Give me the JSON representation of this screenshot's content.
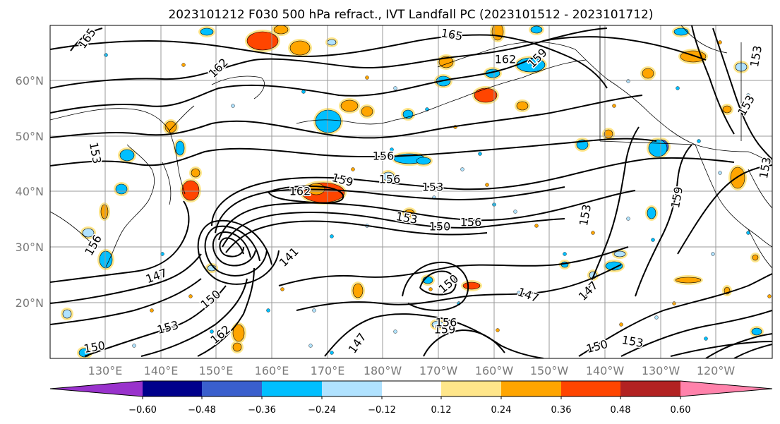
{
  "title": "2023101212 F030 500 hPa refract., IVT Landfall PC (2023101512 - 2023101712)",
  "lat_labels": [
    "60°N",
    "50°N",
    "40°N",
    "30°N",
    "20°N"
  ],
  "lon_labels": [
    "130°E",
    "140°E",
    "150°E",
    "160°E",
    "170°E",
    "180°W",
    "170°W",
    "160°W",
    "150°W",
    "140°W",
    "130°W",
    "120°W"
  ],
  "contour_labels": [
    "165",
    "165",
    "162",
    "162",
    "159",
    "153",
    "156",
    "159",
    "162",
    "153",
    "153",
    "150",
    "156",
    "156",
    "156",
    "147",
    "141",
    "150",
    "147",
    "147",
    "150",
    "162",
    "153",
    "150",
    "150",
    "153",
    "159",
    "156",
    "147",
    "153",
    "159",
    "153",
    "153",
    "153"
  ],
  "colorbar": {
    "tick_labels": [
      "−0.60",
      "−0.48",
      "−0.36",
      "−0.24",
      "−0.12",
      "0.12",
      "0.24",
      "0.36",
      "0.48",
      "0.60"
    ],
    "colors": [
      "#9932cc",
      "#00008b",
      "#3a5fcd",
      "#00bfff",
      "#b0e2ff",
      "#ffffff",
      "#ffe68a",
      "#ffa500",
      "#ff4500",
      "#b22222",
      "#ff82ab"
    ]
  },
  "shading_colors": {
    "neg_strong": "#00bfff",
    "neg_light": "#b0e2ff",
    "pos_light": "#ffe68a",
    "pos_mid": "#ffa500",
    "pos_strong": "#ff4500",
    "neg_dark": "#3a5fcd"
  }
}
